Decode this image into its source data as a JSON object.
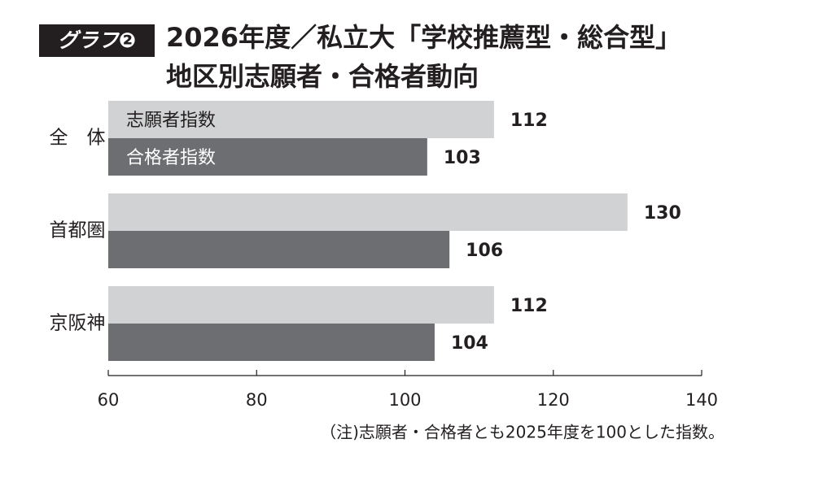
{
  "badge": "グラフ❷",
  "chart_data": {
    "type": "hbar",
    "title": [
      "2026年度／私立大「学校推薦型・総合型」",
      "地区別志願者・合格者動向"
    ],
    "categories": [
      "全　体",
      "首都圏",
      "京阪神"
    ],
    "series": [
      {
        "name": "志願者指数",
        "color": "#d1d2d3",
        "values": [
          112,
          130,
          112
        ]
      },
      {
        "name": "合格者指数",
        "color": "#6d6e71",
        "values": [
          103,
          106,
          104
        ]
      }
    ],
    "xlim": [
      60,
      140
    ],
    "xticks": [
      60,
      80,
      100,
      120,
      140
    ],
    "note": "（注)志願者・合格者とも2025年度を100とした指数。"
  }
}
